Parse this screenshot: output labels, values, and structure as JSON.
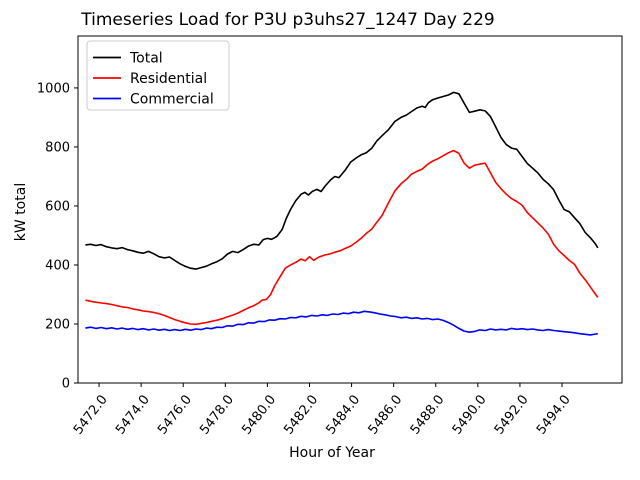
{
  "chart_data": {
    "type": "line",
    "title": "Timeseries Load for P3U p3uhs27_1247  Day 229",
    "xlabel": "Hour of Year",
    "ylabel": "kW total",
    "xlim": [
      5471.0,
      5496.85
    ],
    "ylim": [
      0,
      1176
    ],
    "grid": false,
    "x_ticks": [
      5472,
      5474,
      5476,
      5478,
      5480,
      5482,
      5484,
      5486,
      5488,
      5490,
      5492,
      5494
    ],
    "x_tick_labels": [
      "5472.0",
      "5474.0",
      "5476.0",
      "5478.0",
      "5480.0",
      "5482.0",
      "5484.0",
      "5486.0",
      "5488.0",
      "5490.0",
      "5492.0",
      "5494.0"
    ],
    "x_tick_rotation": -52,
    "y_ticks": [
      0,
      200,
      400,
      600,
      800,
      1000
    ],
    "y_tick_labels": [
      "0",
      "200",
      "400",
      "600",
      "800",
      "1000"
    ],
    "legend": {
      "position": "upper-left",
      "border_color": "#cccccc",
      "background": "#ffffff"
    },
    "series": [
      {
        "name": "Total",
        "color": "#000000",
        "points": [
          [
            5471.35,
            468
          ],
          [
            5471.6,
            470
          ],
          [
            5471.85,
            466
          ],
          [
            5472.1,
            469
          ],
          [
            5472.35,
            462
          ],
          [
            5472.6,
            458
          ],
          [
            5472.85,
            455
          ],
          [
            5473.1,
            459
          ],
          [
            5473.35,
            452
          ],
          [
            5473.6,
            448
          ],
          [
            5473.85,
            443
          ],
          [
            5474.1,
            440
          ],
          [
            5474.35,
            446
          ],
          [
            5474.6,
            438
          ],
          [
            5474.85,
            428
          ],
          [
            5475.1,
            424
          ],
          [
            5475.35,
            427
          ],
          [
            5475.6,
            415
          ],
          [
            5475.85,
            404
          ],
          [
            5476.1,
            395
          ],
          [
            5476.35,
            389
          ],
          [
            5476.6,
            386
          ],
          [
            5476.85,
            391
          ],
          [
            5477.1,
            396
          ],
          [
            5477.35,
            404
          ],
          [
            5477.6,
            411
          ],
          [
            5477.85,
            421
          ],
          [
            5478.1,
            437
          ],
          [
            5478.35,
            446
          ],
          [
            5478.6,
            442
          ],
          [
            5478.85,
            452
          ],
          [
            5479.1,
            464
          ],
          [
            5479.35,
            470
          ],
          [
            5479.6,
            468
          ],
          [
            5479.8,
            486
          ],
          [
            5480.0,
            490
          ],
          [
            5480.2,
            487
          ],
          [
            5480.45,
            497
          ],
          [
            5480.7,
            520
          ],
          [
            5480.9,
            558
          ],
          [
            5481.1,
            588
          ],
          [
            5481.35,
            618
          ],
          [
            5481.6,
            640
          ],
          [
            5481.78,
            646
          ],
          [
            5481.95,
            637
          ],
          [
            5482.15,
            650
          ],
          [
            5482.35,
            656
          ],
          [
            5482.55,
            649
          ],
          [
            5482.75,
            668
          ],
          [
            5483.0,
            688
          ],
          [
            5483.2,
            700
          ],
          [
            5483.4,
            696
          ],
          [
            5483.7,
            722
          ],
          [
            5483.95,
            748
          ],
          [
            5484.2,
            762
          ],
          [
            5484.45,
            773
          ],
          [
            5484.7,
            780
          ],
          [
            5484.95,
            795
          ],
          [
            5485.2,
            820
          ],
          [
            5485.45,
            838
          ],
          [
            5485.75,
            858
          ],
          [
            5486.05,
            886
          ],
          [
            5486.35,
            900
          ],
          [
            5486.6,
            908
          ],
          [
            5486.85,
            920
          ],
          [
            5487.1,
            932
          ],
          [
            5487.35,
            938
          ],
          [
            5487.5,
            934
          ],
          [
            5487.65,
            950
          ],
          [
            5487.85,
            960
          ],
          [
            5488.1,
            966
          ],
          [
            5488.35,
            971
          ],
          [
            5488.6,
            976
          ],
          [
            5488.85,
            985
          ],
          [
            5489.1,
            980
          ],
          [
            5489.35,
            948
          ],
          [
            5489.6,
            917
          ],
          [
            5489.85,
            921
          ],
          [
            5490.1,
            926
          ],
          [
            5490.35,
            922
          ],
          [
            5490.6,
            903
          ],
          [
            5490.85,
            868
          ],
          [
            5491.1,
            832
          ],
          [
            5491.35,
            808
          ],
          [
            5491.6,
            796
          ],
          [
            5491.85,
            792
          ],
          [
            5492.1,
            768
          ],
          [
            5492.35,
            744
          ],
          [
            5492.6,
            728
          ],
          [
            5492.85,
            712
          ],
          [
            5493.1,
            690
          ],
          [
            5493.35,
            675
          ],
          [
            5493.6,
            655
          ],
          [
            5493.85,
            620
          ],
          [
            5494.1,
            588
          ],
          [
            5494.35,
            580
          ],
          [
            5494.6,
            560
          ],
          [
            5494.85,
            540
          ],
          [
            5495.1,
            510
          ],
          [
            5495.35,
            492
          ],
          [
            5495.6,
            470
          ],
          [
            5495.7,
            458
          ]
        ]
      },
      {
        "name": "Residential",
        "color": "#ff0000",
        "points": [
          [
            5471.35,
            281
          ],
          [
            5471.6,
            277
          ],
          [
            5471.85,
            274
          ],
          [
            5472.1,
            271
          ],
          [
            5472.35,
            269
          ],
          [
            5472.6,
            266
          ],
          [
            5472.85,
            262
          ],
          [
            5473.1,
            258
          ],
          [
            5473.35,
            256
          ],
          [
            5473.6,
            251
          ],
          [
            5473.85,
            248
          ],
          [
            5474.1,
            244
          ],
          [
            5474.35,
            242
          ],
          [
            5474.6,
            239
          ],
          [
            5474.85,
            235
          ],
          [
            5475.1,
            229
          ],
          [
            5475.35,
            222
          ],
          [
            5475.6,
            215
          ],
          [
            5475.85,
            209
          ],
          [
            5476.1,
            204
          ],
          [
            5476.35,
            200
          ],
          [
            5476.6,
            199
          ],
          [
            5476.85,
            202
          ],
          [
            5477.1,
            205
          ],
          [
            5477.35,
            209
          ],
          [
            5477.6,
            213
          ],
          [
            5477.85,
            218
          ],
          [
            5478.1,
            224
          ],
          [
            5478.35,
            230
          ],
          [
            5478.6,
            237
          ],
          [
            5478.85,
            246
          ],
          [
            5479.1,
            255
          ],
          [
            5479.35,
            262
          ],
          [
            5479.6,
            272
          ],
          [
            5479.75,
            281
          ],
          [
            5479.95,
            283
          ],
          [
            5480.15,
            300
          ],
          [
            5480.35,
            330
          ],
          [
            5480.6,
            360
          ],
          [
            5480.85,
            389
          ],
          [
            5481.1,
            400
          ],
          [
            5481.35,
            409
          ],
          [
            5481.6,
            420
          ],
          [
            5481.8,
            414
          ],
          [
            5482.0,
            428
          ],
          [
            5482.2,
            416
          ],
          [
            5482.45,
            427
          ],
          [
            5482.75,
            434
          ],
          [
            5483.0,
            438
          ],
          [
            5483.2,
            443
          ],
          [
            5483.45,
            448
          ],
          [
            5483.7,
            456
          ],
          [
            5483.95,
            464
          ],
          [
            5484.2,
            476
          ],
          [
            5484.45,
            490
          ],
          [
            5484.7,
            507
          ],
          [
            5484.95,
            521
          ],
          [
            5485.2,
            545
          ],
          [
            5485.45,
            568
          ],
          [
            5485.75,
            610
          ],
          [
            5486.05,
            650
          ],
          [
            5486.35,
            675
          ],
          [
            5486.6,
            690
          ],
          [
            5486.85,
            708
          ],
          [
            5487.1,
            717
          ],
          [
            5487.35,
            725
          ],
          [
            5487.6,
            740
          ],
          [
            5487.85,
            752
          ],
          [
            5488.1,
            760
          ],
          [
            5488.35,
            770
          ],
          [
            5488.6,
            780
          ],
          [
            5488.85,
            788
          ],
          [
            5489.1,
            778
          ],
          [
            5489.35,
            745
          ],
          [
            5489.6,
            728
          ],
          [
            5489.85,
            738
          ],
          [
            5490.1,
            742
          ],
          [
            5490.35,
            745
          ],
          [
            5490.6,
            712
          ],
          [
            5490.85,
            680
          ],
          [
            5491.1,
            658
          ],
          [
            5491.35,
            640
          ],
          [
            5491.6,
            625
          ],
          [
            5491.85,
            615
          ],
          [
            5492.1,
            603
          ],
          [
            5492.35,
            578
          ],
          [
            5492.6,
            560
          ],
          [
            5492.85,
            543
          ],
          [
            5493.1,
            525
          ],
          [
            5493.35,
            505
          ],
          [
            5493.6,
            470
          ],
          [
            5493.85,
            448
          ],
          [
            5494.1,
            432
          ],
          [
            5494.35,
            415
          ],
          [
            5494.6,
            402
          ],
          [
            5494.85,
            372
          ],
          [
            5495.1,
            350
          ],
          [
            5495.35,
            325
          ],
          [
            5495.6,
            300
          ],
          [
            5495.7,
            290
          ]
        ]
      },
      {
        "name": "Commercial",
        "color": "#0000ff",
        "points": [
          [
            5471.35,
            186
          ],
          [
            5471.6,
            189
          ],
          [
            5471.85,
            185
          ],
          [
            5472.1,
            188
          ],
          [
            5472.35,
            184
          ],
          [
            5472.6,
            187
          ],
          [
            5472.85,
            183
          ],
          [
            5473.1,
            186
          ],
          [
            5473.35,
            182
          ],
          [
            5473.6,
            185
          ],
          [
            5473.85,
            181
          ],
          [
            5474.1,
            184
          ],
          [
            5474.35,
            180
          ],
          [
            5474.6,
            183
          ],
          [
            5474.85,
            179
          ],
          [
            5475.1,
            182
          ],
          [
            5475.35,
            178
          ],
          [
            5475.6,
            181
          ],
          [
            5475.85,
            178
          ],
          [
            5476.1,
            182
          ],
          [
            5476.35,
            179
          ],
          [
            5476.6,
            183
          ],
          [
            5476.85,
            181
          ],
          [
            5477.1,
            186
          ],
          [
            5477.35,
            184
          ],
          [
            5477.6,
            189
          ],
          [
            5477.85,
            188
          ],
          [
            5478.1,
            194
          ],
          [
            5478.35,
            193
          ],
          [
            5478.6,
            199
          ],
          [
            5478.85,
            198
          ],
          [
            5479.1,
            204
          ],
          [
            5479.35,
            203
          ],
          [
            5479.6,
            209
          ],
          [
            5479.85,
            208
          ],
          [
            5480.1,
            214
          ],
          [
            5480.35,
            213
          ],
          [
            5480.6,
            218
          ],
          [
            5480.85,
            217
          ],
          [
            5481.1,
            222
          ],
          [
            5481.35,
            221
          ],
          [
            5481.6,
            226
          ],
          [
            5481.85,
            224
          ],
          [
            5482.1,
            229
          ],
          [
            5482.35,
            227
          ],
          [
            5482.6,
            231
          ],
          [
            5482.85,
            229
          ],
          [
            5483.1,
            234
          ],
          [
            5483.35,
            232
          ],
          [
            5483.6,
            237
          ],
          [
            5483.85,
            235
          ],
          [
            5484.1,
            240
          ],
          [
            5484.35,
            238
          ],
          [
            5484.6,
            243
          ],
          [
            5484.85,
            241
          ],
          [
            5485.1,
            238
          ],
          [
            5485.35,
            234
          ],
          [
            5485.6,
            231
          ],
          [
            5485.85,
            227
          ],
          [
            5486.1,
            225
          ],
          [
            5486.35,
            221
          ],
          [
            5486.6,
            223
          ],
          [
            5486.85,
            219
          ],
          [
            5487.1,
            221
          ],
          [
            5487.35,
            217
          ],
          [
            5487.6,
            219
          ],
          [
            5487.85,
            215
          ],
          [
            5488.1,
            217
          ],
          [
            5488.35,
            212
          ],
          [
            5488.6,
            205
          ],
          [
            5488.85,
            196
          ],
          [
            5489.1,
            185
          ],
          [
            5489.35,
            176
          ],
          [
            5489.6,
            172
          ],
          [
            5489.85,
            175
          ],
          [
            5490.1,
            180
          ],
          [
            5490.35,
            178
          ],
          [
            5490.6,
            183
          ],
          [
            5490.85,
            180
          ],
          [
            5491.1,
            182
          ],
          [
            5491.35,
            180
          ],
          [
            5491.6,
            185
          ],
          [
            5491.85,
            182
          ],
          [
            5492.1,
            184
          ],
          [
            5492.35,
            181
          ],
          [
            5492.6,
            183
          ],
          [
            5492.85,
            180
          ],
          [
            5493.1,
            178
          ],
          [
            5493.35,
            181
          ],
          [
            5493.6,
            178
          ],
          [
            5493.85,
            176
          ],
          [
            5494.1,
            174
          ],
          [
            5494.35,
            172
          ],
          [
            5494.6,
            170
          ],
          [
            5494.85,
            167
          ],
          [
            5495.1,
            165
          ],
          [
            5495.35,
            163
          ],
          [
            5495.6,
            166
          ],
          [
            5495.7,
            167
          ]
        ]
      }
    ]
  }
}
